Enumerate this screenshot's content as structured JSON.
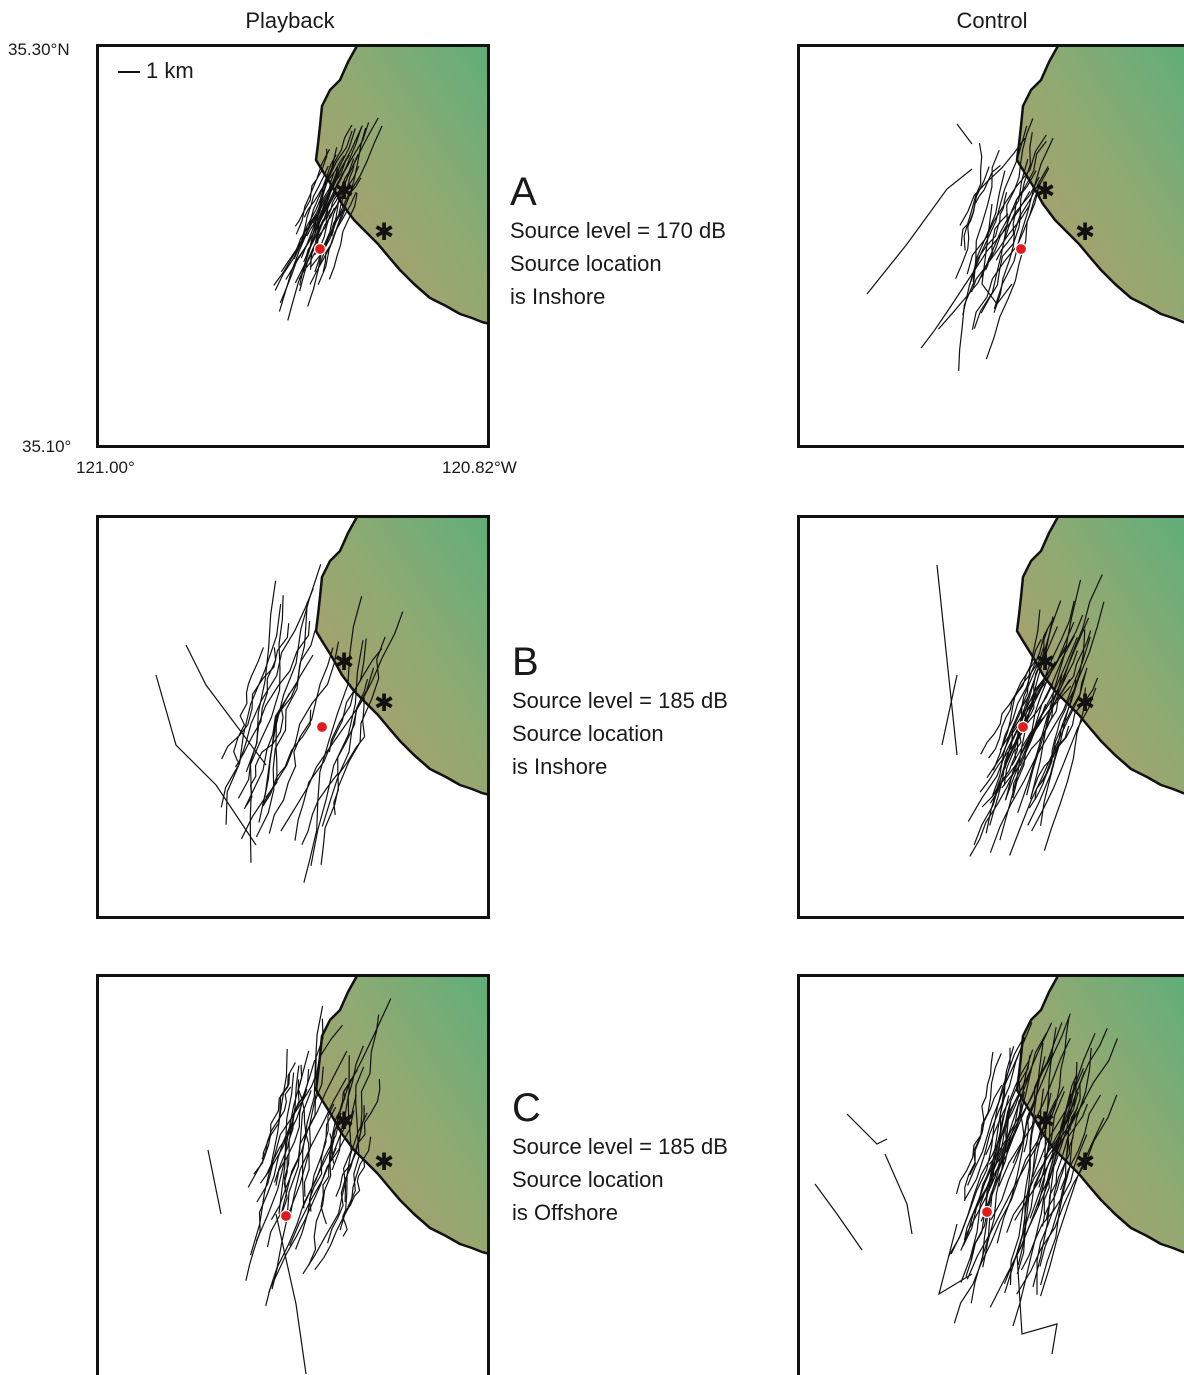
{
  "columns": {
    "left": "Playback",
    "right": "Control"
  },
  "scale_bar": "1 km",
  "axes": {
    "lat_top": "35.30°N",
    "lat_bottom": "35.10°",
    "lon_left": "121.00°",
    "lon_right": "120.82°W"
  },
  "panels": [
    {
      "letter": "A",
      "line1": "Source level = 170 dB",
      "line2": "Source location",
      "line3": "is Inshore"
    },
    {
      "letter": "B",
      "line1": "Source level = 185 dB",
      "line2": "Source location",
      "line3": "is Inshore"
    },
    {
      "letter": "C",
      "line1": "Source level = 185 dB",
      "line2": "Source location",
      "line3": "is Offshore"
    }
  ],
  "colors": {
    "land_warm": "#b99a6a",
    "land_green": "#5cae7a",
    "source_marker": "#e01b1b",
    "track": "#111111"
  },
  "legend_symbols": {
    "source": "red-dot-source",
    "stations": "asterisk-station-icon"
  }
}
